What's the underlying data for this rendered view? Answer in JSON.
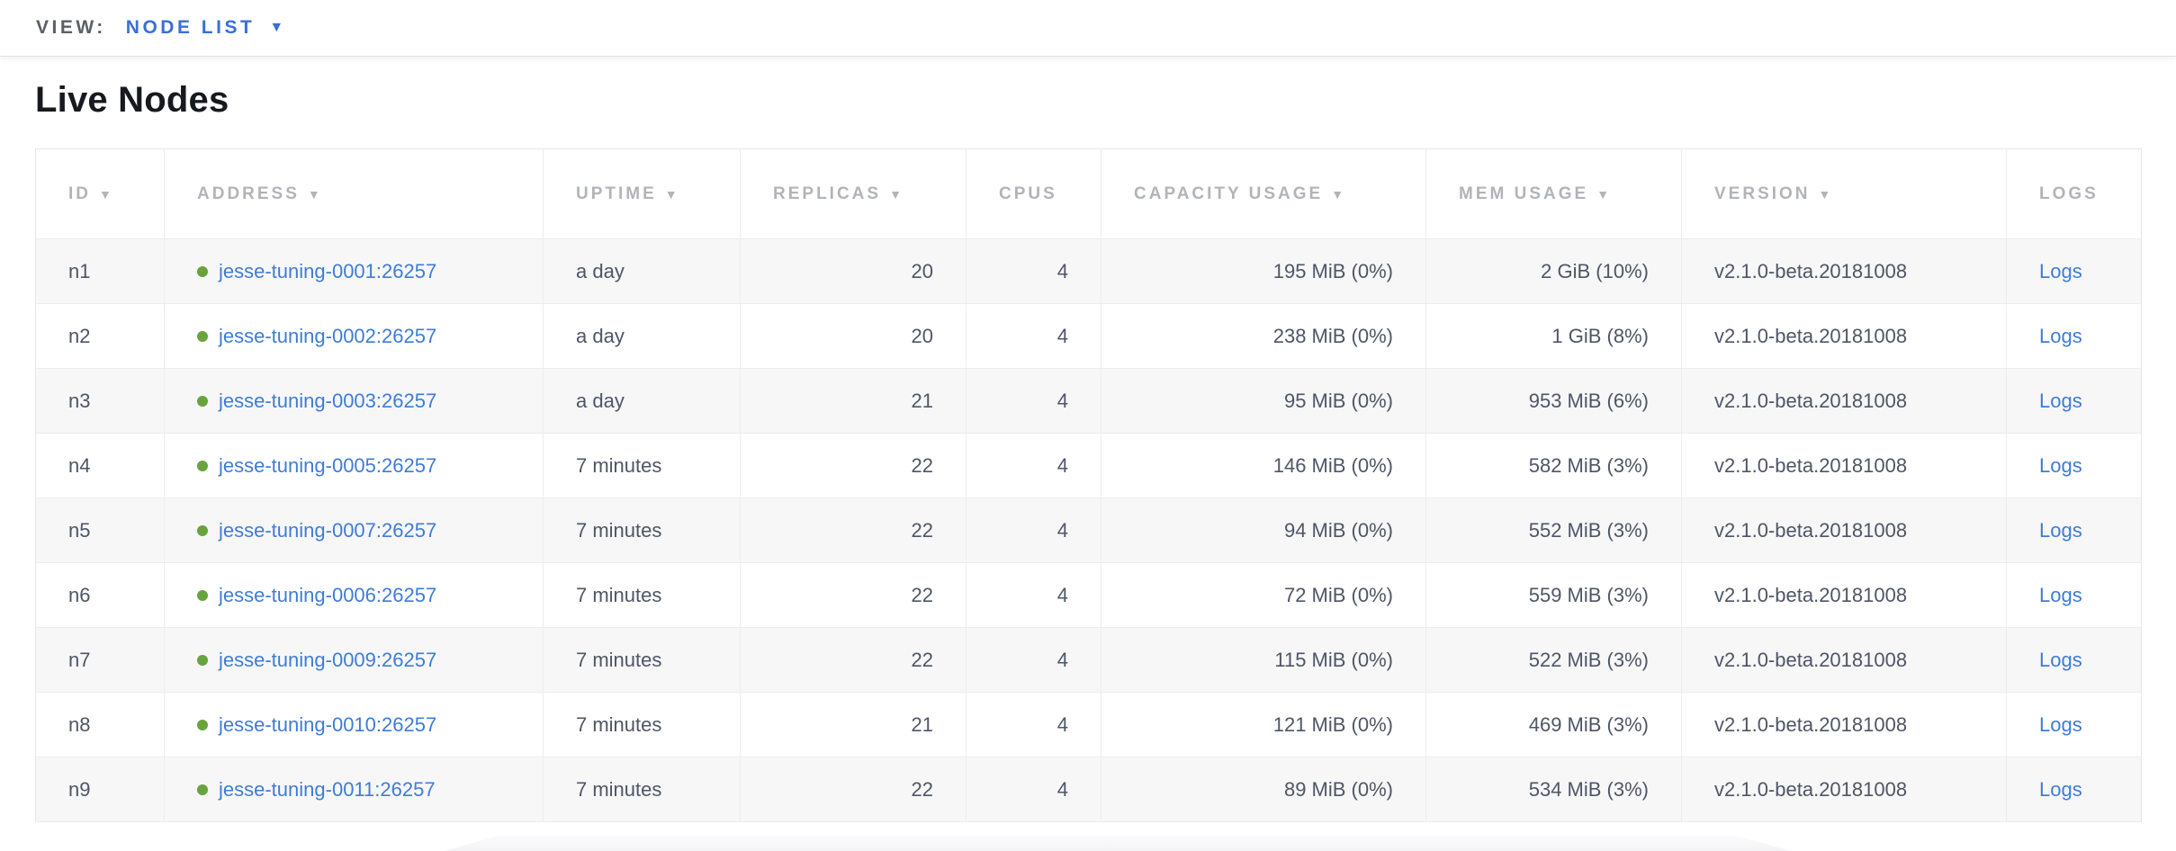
{
  "topbar": {
    "view_label": "VIEW:",
    "view_value": "NODE LIST"
  },
  "page": {
    "title": "Live Nodes"
  },
  "icons": {
    "sort_arrow": "▼",
    "dropdown_caret": "▼"
  },
  "colors": {
    "accent_blue": "#3b6fd9",
    "link_blue": "#3f7cd6",
    "node_status_green": "#68a33e",
    "header_text": "#b1b4b9",
    "row_text": "#4e5666",
    "row_alt_bg": "#f7f7f8",
    "border": "#ededef"
  },
  "table": {
    "columns": [
      {
        "key": "id",
        "label": "ID",
        "sortable": true,
        "align": "left"
      },
      {
        "key": "address",
        "label": "ADDRESS",
        "sortable": true,
        "align": "left"
      },
      {
        "key": "uptime",
        "label": "UPTIME",
        "sortable": true,
        "align": "left"
      },
      {
        "key": "replicas",
        "label": "REPLICAS",
        "sortable": true,
        "align": "right"
      },
      {
        "key": "cpus",
        "label": "CPUS",
        "sortable": false,
        "align": "right"
      },
      {
        "key": "capacity",
        "label": "CAPACITY USAGE",
        "sortable": true,
        "align": "right"
      },
      {
        "key": "mem",
        "label": "MEM USAGE",
        "sortable": true,
        "align": "right"
      },
      {
        "key": "version",
        "label": "VERSION",
        "sortable": true,
        "align": "left"
      },
      {
        "key": "logs",
        "label": "LOGS",
        "sortable": false,
        "align": "left"
      }
    ],
    "rows": [
      {
        "id": "n1",
        "address": "jesse-tuning-0001:26257",
        "uptime": "a day",
        "replicas": "20",
        "cpus": "4",
        "capacity": "195 MiB (0%)",
        "mem": "2 GiB (10%)",
        "version": "v2.1.0-beta.20181008",
        "logs": "Logs"
      },
      {
        "id": "n2",
        "address": "jesse-tuning-0002:26257",
        "uptime": "a day",
        "replicas": "20",
        "cpus": "4",
        "capacity": "238 MiB (0%)",
        "mem": "1 GiB (8%)",
        "version": "v2.1.0-beta.20181008",
        "logs": "Logs"
      },
      {
        "id": "n3",
        "address": "jesse-tuning-0003:26257",
        "uptime": "a day",
        "replicas": "21",
        "cpus": "4",
        "capacity": "95 MiB (0%)",
        "mem": "953 MiB (6%)",
        "version": "v2.1.0-beta.20181008",
        "logs": "Logs"
      },
      {
        "id": "n4",
        "address": "jesse-tuning-0005:26257",
        "uptime": "7 minutes",
        "replicas": "22",
        "cpus": "4",
        "capacity": "146 MiB (0%)",
        "mem": "582 MiB (3%)",
        "version": "v2.1.0-beta.20181008",
        "logs": "Logs"
      },
      {
        "id": "n5",
        "address": "jesse-tuning-0007:26257",
        "uptime": "7 minutes",
        "replicas": "22",
        "cpus": "4",
        "capacity": "94 MiB (0%)",
        "mem": "552 MiB (3%)",
        "version": "v2.1.0-beta.20181008",
        "logs": "Logs"
      },
      {
        "id": "n6",
        "address": "jesse-tuning-0006:26257",
        "uptime": "7 minutes",
        "replicas": "22",
        "cpus": "4",
        "capacity": "72 MiB (0%)",
        "mem": "559 MiB (3%)",
        "version": "v2.1.0-beta.20181008",
        "logs": "Logs"
      },
      {
        "id": "n7",
        "address": "jesse-tuning-0009:26257",
        "uptime": "7 minutes",
        "replicas": "22",
        "cpus": "4",
        "capacity": "115 MiB (0%)",
        "mem": "522 MiB (3%)",
        "version": "v2.1.0-beta.20181008",
        "logs": "Logs"
      },
      {
        "id": "n8",
        "address": "jesse-tuning-0010:26257",
        "uptime": "7 minutes",
        "replicas": "21",
        "cpus": "4",
        "capacity": "121 MiB (0%)",
        "mem": "469 MiB (3%)",
        "version": "v2.1.0-beta.20181008",
        "logs": "Logs"
      },
      {
        "id": "n9",
        "address": "jesse-tuning-0011:26257",
        "uptime": "7 minutes",
        "replicas": "22",
        "cpus": "4",
        "capacity": "89 MiB (0%)",
        "mem": "534 MiB (3%)",
        "version": "v2.1.0-beta.20181008",
        "logs": "Logs"
      }
    ]
  }
}
